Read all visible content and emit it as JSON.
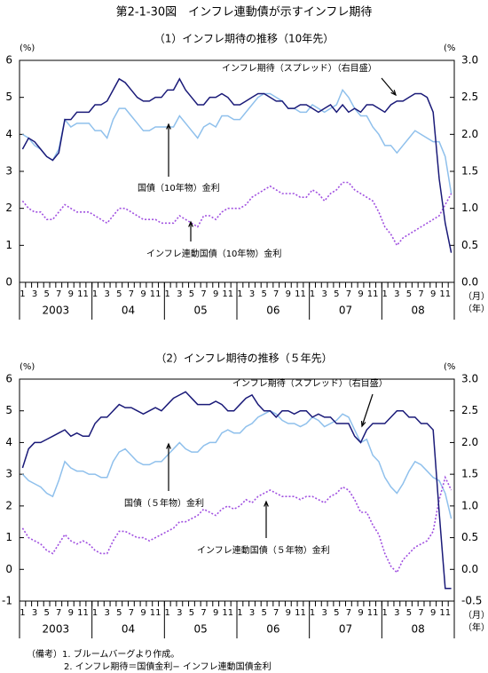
{
  "title": "第2-1-30図　インフレ連動債が示すインフレ期待",
  "notes": [
    "（備考）1. ブルームバーグより作成。",
    "2. インフレ期待＝国債金利− インフレ連動国債金利"
  ],
  "chart_data": [
    {
      "type": "line",
      "title": "（1）インフレ期待の推移（10年先）",
      "y_unit": "(%)",
      "y2_unit": "(%",
      "categories": [
        "1",
        null,
        "3",
        null,
        "5",
        null,
        "7",
        null,
        "9",
        null,
        "11",
        null,
        "1",
        null,
        "3",
        null,
        "5",
        null,
        "7",
        null,
        "9",
        null,
        "11",
        null,
        "1",
        null,
        "3",
        null,
        "5",
        null,
        "7",
        null,
        "9",
        null,
        "11",
        null,
        "1",
        null,
        "3",
        null,
        "5",
        null,
        "7",
        null,
        "9",
        null,
        "11",
        null,
        "1",
        null,
        "3",
        null,
        "5",
        null,
        "7",
        null,
        "9",
        null,
        "11",
        null,
        "1",
        null,
        "3",
        null,
        "5",
        null,
        "7",
        null,
        "9",
        null,
        "11",
        null
      ],
      "years": [
        "2003",
        "04",
        "05",
        "06",
        "07",
        "08"
      ],
      "x_unit_labels": [
        "（月）",
        "（年）"
      ],
      "ylim": [
        0,
        6
      ],
      "yticks": [
        0,
        1,
        2,
        3,
        4,
        5,
        6
      ],
      "y2lim": [
        0,
        3
      ],
      "y2ticks": [
        {
          "value": 0,
          "label": "0.0"
        },
        {
          "value": 0.5,
          "label": "0.5"
        },
        {
          "value": 1,
          "label": "1.0"
        },
        {
          "value": 1.5,
          "label": "1.5"
        },
        {
          "value": 2,
          "label": "2.0"
        },
        {
          "value": 2.5,
          "label": "2.5"
        },
        {
          "value": 3,
          "label": "3.0"
        }
      ],
      "series": [
        {
          "name": "インフレ期待（スプレッド）（右目盛）",
          "color": "#1a1a78",
          "axis": "y2",
          "style": "solid",
          "values": [
            1.8,
            1.95,
            1.9,
            1.8,
            1.7,
            1.65,
            1.75,
            2.2,
            2.2,
            2.3,
            2.3,
            2.3,
            2.4,
            2.4,
            2.45,
            2.6,
            2.75,
            2.7,
            2.6,
            2.5,
            2.45,
            2.45,
            2.5,
            2.5,
            2.6,
            2.6,
            2.75,
            2.6,
            2.5,
            2.4,
            2.4,
            2.5,
            2.5,
            2.55,
            2.5,
            2.4,
            2.4,
            2.45,
            2.5,
            2.55,
            2.55,
            2.5,
            2.45,
            2.45,
            2.35,
            2.35,
            2.4,
            2.4,
            2.35,
            2.3,
            2.35,
            2.4,
            2.3,
            2.4,
            2.3,
            2.35,
            2.3,
            2.4,
            2.4,
            2.35,
            2.3,
            2.4,
            2.45,
            2.45,
            2.5,
            2.55,
            2.55,
            2.5,
            2.3,
            1.4,
            0.8,
            0.4
          ]
        },
        {
          "name": "国債（10年物）金利",
          "color": "#8fc0ec",
          "style": "solid",
          "values": [
            4.0,
            3.9,
            3.7,
            3.6,
            3.4,
            3.3,
            3.6,
            4.4,
            4.2,
            4.3,
            4.3,
            4.3,
            4.1,
            4.1,
            3.9,
            4.4,
            4.7,
            4.7,
            4.5,
            4.3,
            4.1,
            4.1,
            4.2,
            4.2,
            4.2,
            4.2,
            4.5,
            4.3,
            4.1,
            3.9,
            4.2,
            4.3,
            4.2,
            4.5,
            4.5,
            4.4,
            4.4,
            4.6,
            4.8,
            5.0,
            5.1,
            5.1,
            5.0,
            4.9,
            4.7,
            4.7,
            4.6,
            4.6,
            4.8,
            4.7,
            4.6,
            4.7,
            4.8,
            5.2,
            5.0,
            4.7,
            4.5,
            4.5,
            4.2,
            4.0,
            3.7,
            3.7,
            3.5,
            3.7,
            3.9,
            4.1,
            4.0,
            3.9,
            3.8,
            3.8,
            3.4,
            2.4
          ]
        },
        {
          "name": "インフレ連動国債（10年物）金利",
          "color": "#a050e0",
          "style": "dotted",
          "values": [
            2.2,
            2.0,
            1.9,
            1.9,
            1.7,
            1.7,
            1.9,
            2.1,
            2.0,
            1.9,
            1.9,
            1.9,
            1.8,
            1.7,
            1.6,
            1.8,
            2.0,
            2.0,
            1.9,
            1.8,
            1.7,
            1.7,
            1.7,
            1.6,
            1.6,
            1.6,
            1.8,
            1.7,
            1.6,
            1.5,
            1.8,
            1.8,
            1.7,
            1.9,
            2.0,
            2.0,
            2.0,
            2.1,
            2.3,
            2.4,
            2.5,
            2.6,
            2.5,
            2.4,
            2.4,
            2.4,
            2.3,
            2.3,
            2.5,
            2.4,
            2.2,
            2.4,
            2.5,
            2.7,
            2.7,
            2.5,
            2.4,
            2.3,
            2.2,
            1.9,
            1.5,
            1.3,
            1.0,
            1.2,
            1.3,
            1.4,
            1.5,
            1.6,
            1.7,
            1.8,
            2.1,
            2.4
          ]
        }
      ]
    },
    {
      "type": "line",
      "title": "（2）インフレ期待の推移（５年先）",
      "y_unit": "(%)",
      "y2_unit": "(%",
      "categories": [
        "1",
        null,
        "3",
        null,
        "5",
        null,
        "7",
        null,
        "9",
        null,
        "11",
        null,
        "1",
        null,
        "3",
        null,
        "5",
        null,
        "7",
        null,
        "9",
        null,
        "11",
        null,
        "1",
        null,
        "3",
        null,
        "5",
        null,
        "7",
        null,
        "9",
        null,
        "11",
        null,
        "1",
        null,
        "3",
        null,
        "5",
        null,
        "7",
        null,
        "9",
        null,
        "11",
        null,
        "1",
        null,
        "3",
        null,
        "5",
        null,
        "7",
        null,
        "9",
        null,
        "11",
        null,
        "1",
        null,
        "3",
        null,
        "5",
        null,
        "7",
        null,
        "9",
        null,
        "11",
        null
      ],
      "years": [
        "2003",
        "04",
        "05",
        "06",
        "07",
        "08"
      ],
      "x_unit_labels": [
        "（月）",
        "（年）"
      ],
      "ylim": [
        -1,
        6
      ],
      "yticks": [
        -1,
        0,
        1,
        2,
        3,
        4,
        5,
        6
      ],
      "y2lim": [
        -0.5,
        3
      ],
      "y2ticks": [
        {
          "value": -0.5,
          "label": "-0.5"
        },
        {
          "value": 0,
          "label": "0.0"
        },
        {
          "value": 0.5,
          "label": "0.5"
        },
        {
          "value": 1,
          "label": "1.0"
        },
        {
          "value": 1.5,
          "label": "1.5"
        },
        {
          "value": 2,
          "label": "2.0"
        },
        {
          "value": 2.5,
          "label": "2.5"
        },
        {
          "value": 3,
          "label": "3.0"
        }
      ],
      "series": [
        {
          "name": "インフレ期待（スプレッド）（右目盛）",
          "color": "#1a1a78",
          "axis": "y2",
          "style": "solid",
          "values": [
            1.6,
            1.9,
            2.0,
            2.0,
            2.05,
            2.1,
            2.15,
            2.2,
            2.1,
            2.15,
            2.1,
            2.1,
            2.3,
            2.4,
            2.4,
            2.5,
            2.6,
            2.55,
            2.55,
            2.5,
            2.45,
            2.5,
            2.55,
            2.5,
            2.6,
            2.7,
            2.75,
            2.8,
            2.7,
            2.6,
            2.6,
            2.6,
            2.65,
            2.6,
            2.5,
            2.5,
            2.6,
            2.7,
            2.75,
            2.6,
            2.5,
            2.5,
            2.4,
            2.5,
            2.5,
            2.45,
            2.5,
            2.5,
            2.4,
            2.45,
            2.4,
            2.4,
            2.3,
            2.3,
            2.3,
            2.1,
            2.0,
            2.2,
            2.3,
            2.3,
            2.3,
            2.4,
            2.5,
            2.5,
            2.4,
            2.4,
            2.3,
            2.3,
            2.2,
            0.9,
            -0.3,
            -0.3
          ]
        },
        {
          "name": "国債（５年物）金利",
          "color": "#8fc0ec",
          "style": "solid",
          "values": [
            3.0,
            2.8,
            2.7,
            2.6,
            2.4,
            2.3,
            2.8,
            3.4,
            3.2,
            3.1,
            3.1,
            3.0,
            3.0,
            2.9,
            2.9,
            3.4,
            3.7,
            3.8,
            3.6,
            3.4,
            3.3,
            3.3,
            3.4,
            3.4,
            3.6,
            3.8,
            4.0,
            3.8,
            3.7,
            3.7,
            3.9,
            4.0,
            4.0,
            4.3,
            4.4,
            4.3,
            4.3,
            4.5,
            4.6,
            4.8,
            4.9,
            5.0,
            4.9,
            4.7,
            4.6,
            4.6,
            4.5,
            4.6,
            4.8,
            4.7,
            4.5,
            4.6,
            4.7,
            4.9,
            4.8,
            4.4,
            4.0,
            4.1,
            3.6,
            3.4,
            2.9,
            2.6,
            2.4,
            2.7,
            3.1,
            3.4,
            3.3,
            3.1,
            2.9,
            2.8,
            2.4,
            1.6
          ]
        },
        {
          "name": "インフレ連動国債（５年物）金利",
          "color": "#a050e0",
          "style": "dotted",
          "values": [
            1.3,
            1.0,
            0.9,
            0.8,
            0.6,
            0.5,
            0.8,
            1.1,
            0.9,
            0.8,
            0.9,
            0.8,
            0.6,
            0.5,
            0.5,
            0.9,
            1.2,
            1.2,
            1.1,
            1.0,
            1.0,
            0.9,
            1.0,
            1.1,
            1.2,
            1.3,
            1.5,
            1.5,
            1.6,
            1.7,
            1.9,
            1.8,
            1.7,
            1.9,
            2.0,
            1.9,
            2.0,
            2.2,
            2.1,
            2.3,
            2.4,
            2.5,
            2.4,
            2.3,
            2.3,
            2.3,
            2.2,
            2.3,
            2.3,
            2.2,
            2.1,
            2.3,
            2.4,
            2.6,
            2.5,
            2.2,
            1.8,
            1.8,
            1.4,
            1.1,
            0.5,
            0.1,
            -0.1,
            0.3,
            0.5,
            0.7,
            0.8,
            0.9,
            1.2,
            2.2,
            2.9,
            2.5
          ]
        }
      ]
    }
  ]
}
